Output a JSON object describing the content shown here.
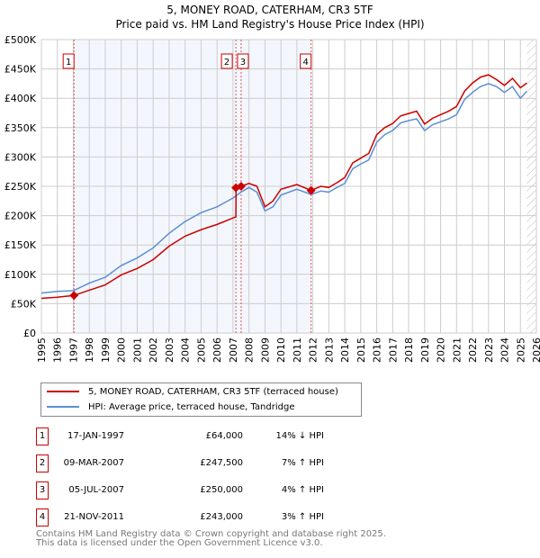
{
  "chart_data": {
    "type": "line",
    "title": "5, MONEY ROAD, CATERHAM, CR3 5TF",
    "subtitle": "Price paid vs. HM Land Registry's House Price Index (HPI)",
    "xlim": [
      1995,
      2026
    ],
    "ylim": [
      0,
      500000
    ],
    "x_ticks": [
      "1995",
      "1996",
      "1997",
      "1998",
      "1999",
      "2000",
      "2001",
      "2002",
      "2003",
      "2004",
      "2005",
      "2006",
      "2007",
      "2008",
      "2009",
      "2010",
      "2011",
      "2012",
      "2013",
      "2014",
      "2015",
      "2016",
      "2017",
      "2018",
      "2019",
      "2020",
      "2021",
      "2022",
      "2023",
      "2024",
      "2025",
      "2026"
    ],
    "y_ticks": [
      "£0",
      "£50K",
      "£100K",
      "£150K",
      "£200K",
      "£250K",
      "£300K",
      "£350K",
      "£400K",
      "£450K",
      "£500K"
    ],
    "grid": true,
    "legend_placement": "below",
    "series": [
      {
        "name": "5, MONEY ROAD, CATERHAM, CR3 5TF (terraced house)",
        "color": "#cc0000",
        "x": [
          1995,
          1996,
          1997.04,
          1998,
          1999,
          2000,
          2001,
          2002,
          2003,
          2004,
          2005,
          2006,
          2007.18,
          2007.19,
          2007.5,
          2008,
          2008.5,
          2009,
          2009.5,
          2010,
          2011,
          2011.89,
          2012.5,
          2013,
          2013.5,
          2014,
          2014.5,
          2015,
          2015.5,
          2016,
          2016.5,
          2017,
          2017.5,
          2018,
          2018.5,
          2019,
          2019.5,
          2020,
          2020.5,
          2021,
          2021.5,
          2022,
          2022.5,
          2023,
          2023.5,
          2024,
          2024.5,
          2025,
          2025.4
        ],
        "y": [
          59000,
          61000,
          64000,
          73000,
          82000,
          99000,
          110000,
          125000,
          148000,
          165000,
          176000,
          185000,
          198000,
          247500,
          250000,
          255000,
          250000,
          215000,
          225000,
          245000,
          253000,
          243000,
          250000,
          248000,
          256000,
          265000,
          290000,
          298000,
          306000,
          338000,
          350000,
          357000,
          370000,
          374000,
          378000,
          356000,
          366000,
          372000,
          378000,
          386000,
          412000,
          426000,
          436000,
          440000,
          432000,
          422000,
          434000,
          418000,
          426000
        ]
      },
      {
        "name": "HPI: Average price, terraced house, Tandridge",
        "color": "#5b8fd4",
        "x": [
          1995,
          1996,
          1997,
          1998,
          1999,
          2000,
          2001,
          2002,
          2003,
          2004,
          2005,
          2006,
          2007,
          2007.5,
          2008,
          2008.5,
          2009,
          2009.5,
          2010,
          2011,
          2011.9,
          2012.5,
          2013,
          2013.5,
          2014,
          2014.5,
          2015,
          2015.5,
          2016,
          2016.5,
          2017,
          2017.5,
          2018,
          2018.5,
          2019,
          2019.5,
          2020,
          2020.5,
          2021,
          2021.5,
          2022,
          2022.5,
          2023,
          2023.5,
          2024,
          2024.5,
          2025,
          2025.4
        ],
        "y": [
          68000,
          71000,
          72000,
          85000,
          95000,
          115000,
          128000,
          145000,
          170000,
          190000,
          205000,
          215000,
          230000,
          240000,
          248000,
          240000,
          208000,
          215000,
          235000,
          245000,
          236000,
          242000,
          240000,
          248000,
          255000,
          280000,
          288000,
          295000,
          325000,
          338000,
          345000,
          358000,
          362000,
          365000,
          345000,
          355000,
          360000,
          365000,
          372000,
          398000,
          410000,
          420000,
          425000,
          420000,
          410000,
          420000,
          400000,
          412000
        ]
      }
    ],
    "transactions": [
      {
        "label": "1",
        "x": 1997.04,
        "y": 64000,
        "date": "17-JAN-1997",
        "price": "£64,000",
        "hpi": "14% ↓ HPI"
      },
      {
        "label": "2",
        "x": 2007.18,
        "y": 247500,
        "date": "09-MAR-2007",
        "price": "£247,500",
        "hpi": "7% ↑ HPI"
      },
      {
        "label": "3",
        "x": 2007.51,
        "y": 250000,
        "date": "05-JUL-2007",
        "price": "£250,000",
        "hpi": "4% ↑ HPI"
      },
      {
        "label": "4",
        "x": 2011.89,
        "y": 243000,
        "date": "21-NOV-2011",
        "price": "£243,000",
        "hpi": "3% ↑ HPI"
      }
    ],
    "shaded_range": [
      1997.04,
      2011.89
    ],
    "hatched_from": 2025.4
  },
  "footer": {
    "line1": "Contains HM Land Registry data © Crown copyright and database right 2025.",
    "line2": "This data is licensed under the Open Government Licence v3.0."
  }
}
